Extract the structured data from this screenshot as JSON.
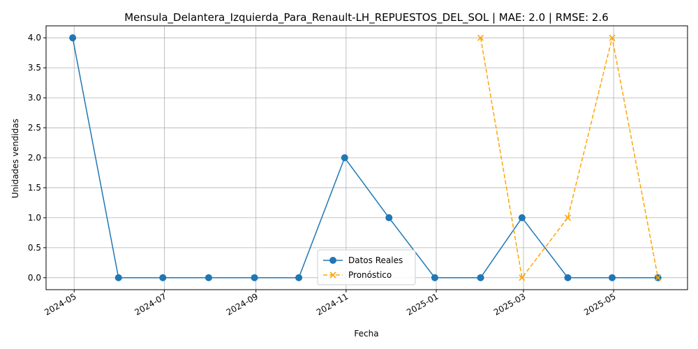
{
  "chart_data": {
    "type": "line",
    "title": "Mensula_Delantera_Izquierda_Para_Renault-LH_REPUESTOS_DEL_SOL | MAE: 2.0 | RMSE: 2.6",
    "xlabel": "Fecha",
    "ylabel": "Unidades vendidas",
    "x_ticks": [
      "2024-05",
      "2024-07",
      "2024-09",
      "2024-11",
      "2025-01",
      "2025-03",
      "2025-05"
    ],
    "y_ticks": [
      "0.0",
      "0.5",
      "1.0",
      "1.5",
      "2.0",
      "2.5",
      "3.0",
      "3.5",
      "4.0"
    ],
    "ylim": [
      -0.2,
      4.2
    ],
    "xlim": [
      "2024-04-12",
      "2025-06-20"
    ],
    "grid": true,
    "legend_position": "lower center",
    "series": [
      {
        "name": "Datos Reales",
        "color": "#1f77b4",
        "style": "solid",
        "marker": "circle",
        "x": [
          "2024-04-30",
          "2024-05-31",
          "2024-06-30",
          "2024-07-31",
          "2024-08-31",
          "2024-09-30",
          "2024-10-31",
          "2024-11-30",
          "2024-12-31",
          "2025-01-31",
          "2025-02-28",
          "2025-03-31",
          "2025-04-30",
          "2025-05-31"
        ],
        "values": [
          4,
          0,
          0,
          0,
          0,
          0,
          2,
          1,
          0,
          0,
          1,
          0,
          0,
          0
        ]
      },
      {
        "name": "Pronóstico",
        "color": "#ffa500",
        "style": "dashed",
        "marker": "x",
        "x": [
          "2025-01-31",
          "2025-02-28",
          "2025-03-31",
          "2025-04-30",
          "2025-05-31"
        ],
        "values": [
          4,
          0,
          1,
          4,
          0
        ]
      }
    ]
  }
}
